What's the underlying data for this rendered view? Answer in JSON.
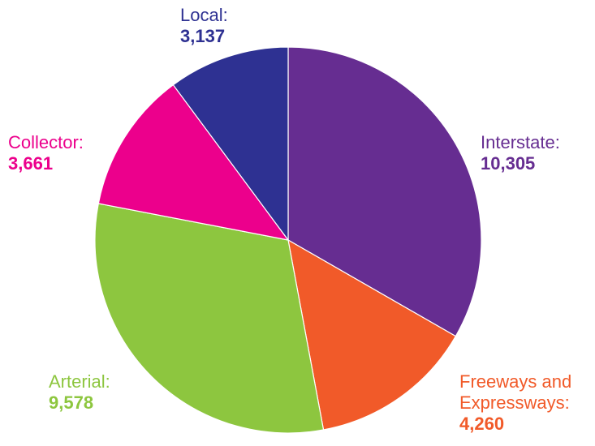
{
  "chart_data": {
    "type": "pie",
    "categories": [
      "Interstate:",
      "Freeways and Expressways:",
      "Arterial:",
      "Collector:",
      "Local:"
    ],
    "values": [
      10305,
      4260,
      9578,
      3661,
      3137
    ],
    "value_labels": [
      "10,305",
      "4,260",
      "9,578",
      "3,661",
      "3,137"
    ],
    "colors": [
      "#662d91",
      "#f15a29",
      "#8dc63f",
      "#ec008c",
      "#2e3192"
    ]
  }
}
